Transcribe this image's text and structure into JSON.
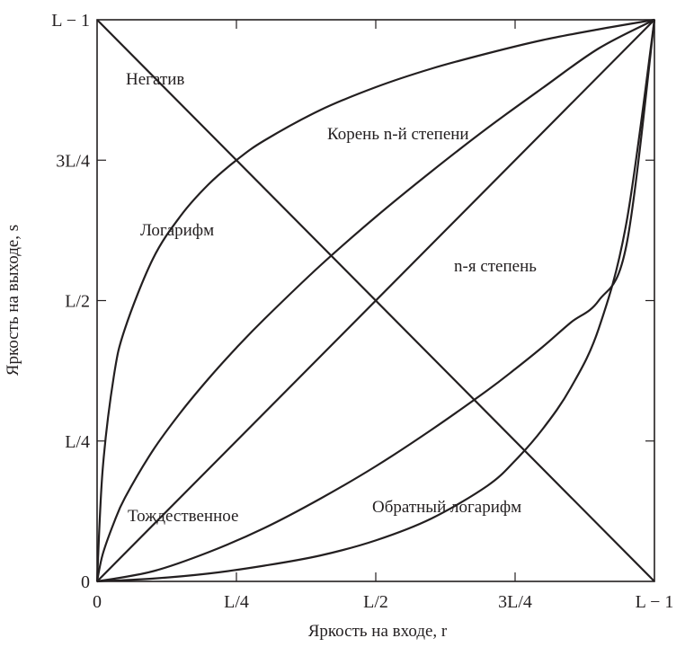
{
  "chart_data": {
    "type": "line",
    "title": "",
    "xlabel": "Яркость на входе, r",
    "ylabel": "Яркость на выходе, s",
    "xlim": [
      0,
      1
    ],
    "ylim": [
      0,
      1
    ],
    "grid": false,
    "x_ticks": [
      {
        "value": 0,
        "label": "0"
      },
      {
        "value": 0.25,
        "label": "L/4"
      },
      {
        "value": 0.5,
        "label": "L/2"
      },
      {
        "value": 0.75,
        "label": "3L/4"
      },
      {
        "value": 1,
        "label": "L − 1"
      }
    ],
    "y_ticks": [
      {
        "value": 0,
        "label": "0"
      },
      {
        "value": 0.25,
        "label": "L/4"
      },
      {
        "value": 0.5,
        "label": "L/2"
      },
      {
        "value": 0.75,
        "label": "3L/4"
      },
      {
        "value": 1,
        "label": "L − 1"
      }
    ],
    "series": [
      {
        "name": "Негатив",
        "x": [
          0,
          1
        ],
        "y": [
          1,
          0
        ]
      },
      {
        "name": "Тождественное",
        "x": [
          0,
          1
        ],
        "y": [
          0,
          1
        ]
      },
      {
        "name": "Логарифм",
        "x": [
          0,
          0.01,
          0.03,
          0.05,
          0.1,
          0.15,
          0.2,
          0.25,
          0.3,
          0.4,
          0.5,
          0.6,
          0.7,
          0.8,
          0.9,
          1
        ],
        "y": [
          0,
          0.199,
          0.365,
          0.45,
          0.574,
          0.651,
          0.707,
          0.75,
          0.785,
          0.839,
          0.88,
          0.913,
          0.94,
          0.964,
          0.983,
          1
        ]
      },
      {
        "name": "Корень n-й степени",
        "x": [
          0,
          0.01,
          0.03,
          0.05,
          0.1,
          0.15,
          0.2,
          0.25,
          0.3,
          0.4,
          0.5,
          0.6,
          0.7,
          0.8,
          0.9,
          1
        ],
        "y": [
          0,
          0.048,
          0.104,
          0.149,
          0.233,
          0.301,
          0.361,
          0.416,
          0.467,
          0.562,
          0.649,
          0.73,
          0.807,
          0.879,
          0.949,
          1
        ]
      },
      {
        "name": "n-я степень",
        "x": [
          0,
          0.1,
          0.2,
          0.3,
          0.4,
          0.5,
          0.6,
          0.7,
          0.75,
          0.8,
          0.85,
          0.9,
          0.95,
          1
        ],
        "y": [
          0,
          0.018,
          0.052,
          0.095,
          0.147,
          0.205,
          0.27,
          0.34,
          0.378,
          0.418,
          0.461,
          0.5,
          0.6,
          1
        ]
      },
      {
        "name": "Обратный логарифм",
        "x": [
          0,
          0.1,
          0.2,
          0.3,
          0.4,
          0.5,
          0.6,
          0.7,
          0.75,
          0.8,
          0.85,
          0.9,
          0.95,
          1
        ],
        "y": [
          0,
          0.005,
          0.014,
          0.028,
          0.046,
          0.073,
          0.112,
          0.17,
          0.215,
          0.272,
          0.345,
          0.45,
          0.64,
          1
        ]
      }
    ]
  }
}
